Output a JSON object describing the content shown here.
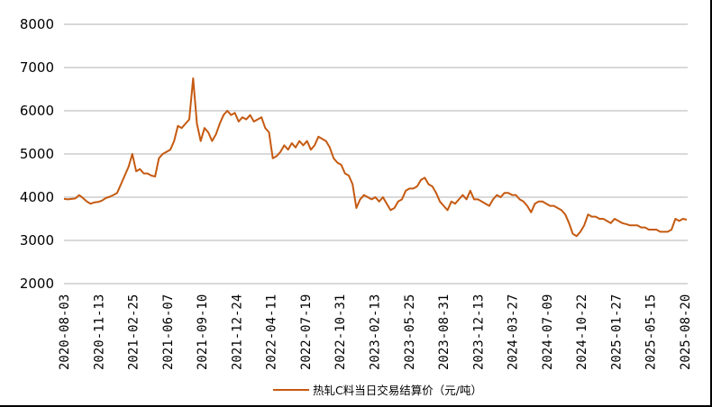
{
  "chart_data": {
    "type": "line",
    "title": "",
    "xlabel": "",
    "ylabel": "",
    "ylim": [
      2000,
      8000
    ],
    "yticks": [
      2000,
      3000,
      4000,
      5000,
      6000,
      7000,
      8000
    ],
    "grid": true,
    "legend_position": "bottom",
    "x_tick_labels": [
      "2020-08-03",
      "2020-11-13",
      "2021-02-25",
      "2021-06-07",
      "2021-09-10",
      "2021-12-24",
      "2022-04-11",
      "2022-07-19",
      "2022-10-31",
      "2023-02-13",
      "2023-05-25",
      "2023-08-31",
      "2023-12-13",
      "2024-03-27",
      "2024-07-09",
      "2024-10-22",
      "2025-01-27",
      "2025-05-15",
      "2025-08-20"
    ],
    "series": [
      {
        "name": "热轧C料当日交易结算价（元/吨）",
        "color": "#c55a11",
        "values": [
          3960,
          3950,
          3960,
          3970,
          4050,
          3980,
          3900,
          3850,
          3880,
          3890,
          3920,
          3980,
          4010,
          4050,
          4100,
          4300,
          4500,
          4700,
          5000,
          4600,
          4650,
          4550,
          4550,
          4500,
          4480,
          4900,
          5000,
          5050,
          5100,
          5300,
          5650,
          5600,
          5700,
          5800,
          6750,
          5700,
          5300,
          5600,
          5500,
          5300,
          5450,
          5700,
          5900,
          6000,
          5900,
          5950,
          5750,
          5850,
          5800,
          5900,
          5750,
          5800,
          5850,
          5600,
          5500,
          4900,
          4950,
          5050,
          5200,
          5100,
          5250,
          5150,
          5300,
          5200,
          5300,
          5100,
          5200,
          5400,
          5350,
          5300,
          5150,
          4900,
          4800,
          4750,
          4550,
          4500,
          4300,
          3750,
          3950,
          4050,
          4000,
          3950,
          4000,
          3900,
          4000,
          3850,
          3700,
          3750,
          3900,
          3950,
          4150,
          4200,
          4200,
          4250,
          4400,
          4450,
          4300,
          4250,
          4100,
          3900,
          3800,
          3700,
          3900,
          3850,
          3950,
          4050,
          3950,
          4150,
          3950,
          3950,
          3900,
          3850,
          3800,
          3950,
          4050,
          4000,
          4100,
          4100,
          4050,
          4050,
          3950,
          3900,
          3800,
          3650,
          3850,
          3900,
          3900,
          3850,
          3800,
          3800,
          3750,
          3700,
          3600,
          3400,
          3150,
          3100,
          3200,
          3350,
          3600,
          3550,
          3550,
          3500,
          3500,
          3450,
          3400,
          3500,
          3450,
          3400,
          3380,
          3350,
          3350,
          3350,
          3300,
          3300,
          3250,
          3250,
          3250,
          3200,
          3200,
          3200,
          3250,
          3500,
          3450,
          3500,
          3480
        ]
      }
    ]
  },
  "legend": {
    "label": "热轧C料当日交易结算价（元/吨）"
  }
}
